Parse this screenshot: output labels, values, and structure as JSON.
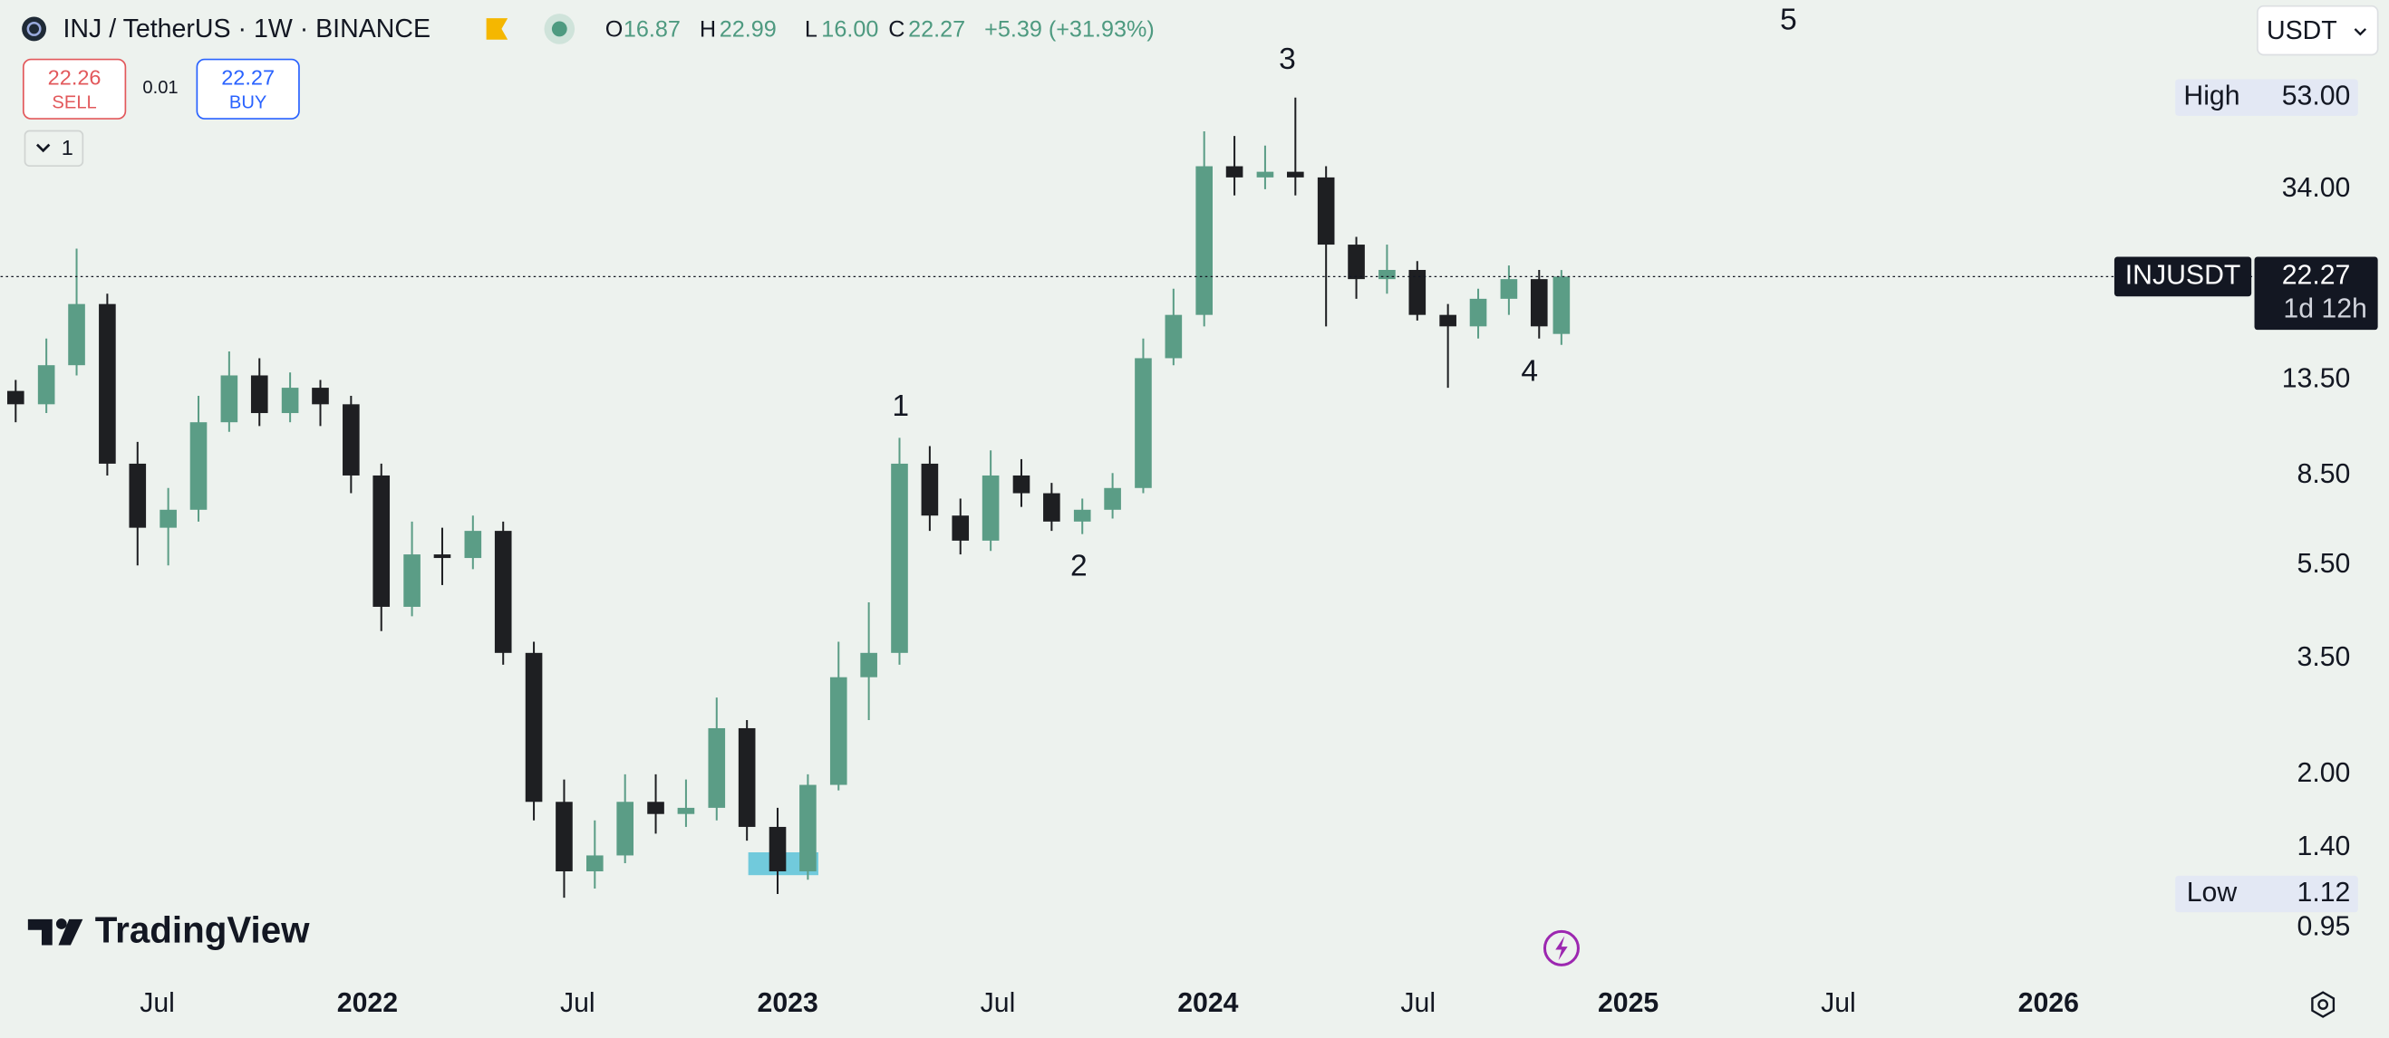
{
  "toolbar": {
    "sell_price": "22.26",
    "sell": "SELL",
    "spread": "0.01",
    "buy_price": "22.27",
    "buy": "BUY",
    "collapse": "1",
    "currency": "USDT"
  },
  "chart_data": {
    "type": "candlestick",
    "symbol": "INJ / TetherUS · 1W · BINANCE",
    "ohlc_header": [
      {
        "key": "O",
        "value": "16.87"
      },
      {
        "key": "H",
        "value": "22.99"
      },
      {
        "key": "L",
        "value": "16.00"
      },
      {
        "key": "C",
        "value": "22.27"
      }
    ],
    "change": "+5.39 (+31.93%)",
    "x": [
      2021.163,
      2021.236,
      2021.308,
      2021.381,
      2021.453,
      2021.526,
      2021.598,
      2021.671,
      2021.743,
      2021.816,
      2021.888,
      2021.961,
      2022.033,
      2022.106,
      2022.178,
      2022.251,
      2022.323,
      2022.396,
      2022.468,
      2022.541,
      2022.613,
      2022.686,
      2022.758,
      2022.831,
      2022.903,
      2022.976,
      2023.048,
      2023.121,
      2023.193,
      2023.266,
      2023.338,
      2023.411,
      2023.483,
      2023.556,
      2023.628,
      2023.701,
      2023.773,
      2023.846,
      2023.918,
      2023.991,
      2024.063,
      2024.136,
      2024.208,
      2024.281,
      2024.353,
      2024.426,
      2024.498,
      2024.571,
      2024.643,
      2024.716,
      2024.788,
      2024.841
    ],
    "open": [
      12.8,
      12.0,
      14.5,
      19.5,
      9.0,
      6.6,
      7.2,
      11.0,
      13.8,
      11.5,
      13.0,
      12.0,
      8.5,
      4.5,
      5.8,
      5.7,
      6.5,
      3.6,
      1.75,
      1.25,
      1.35,
      1.75,
      1.65,
      1.7,
      2.5,
      1.55,
      1.25,
      1.9,
      3.2,
      3.6,
      9.0,
      7.0,
      6.2,
      8.5,
      7.8,
      6.8,
      7.2,
      8.0,
      15.0,
      18.5,
      38,
      36,
      37,
      36,
      26,
      22,
      23,
      18.5,
      17.5,
      20,
      22,
      16.87
    ],
    "high": [
      13.5,
      16.5,
      25.5,
      20.5,
      10.0,
      8.0,
      12.5,
      15.5,
      15.0,
      14.0,
      13.5,
      12.5,
      9.0,
      6.8,
      6.6,
      7.0,
      6.8,
      3.8,
      1.95,
      1.6,
      2.0,
      2.0,
      1.95,
      2.9,
      2.6,
      1.7,
      2.0,
      3.8,
      4.6,
      10.2,
      9.8,
      7.6,
      9.6,
      9.2,
      8.2,
      7.6,
      8.6,
      16.5,
      21,
      45,
      44,
      42,
      53,
      38,
      27,
      26,
      24,
      19.5,
      21,
      23.5,
      23,
      22.99
    ],
    "low": [
      11.0,
      11.5,
      13.8,
      8.5,
      5.5,
      5.5,
      6.8,
      10.5,
      10.8,
      11.0,
      10.8,
      7.8,
      4.0,
      4.3,
      5.0,
      5.4,
      3.4,
      1.6,
      1.1,
      1.15,
      1.3,
      1.5,
      1.55,
      1.6,
      1.45,
      1.12,
      1.2,
      1.85,
      2.6,
      3.4,
      6.5,
      5.8,
      5.9,
      7.3,
      6.5,
      6.4,
      6.9,
      7.8,
      14.5,
      17.5,
      33,
      34,
      33,
      17.5,
      20,
      20.5,
      18,
      13.0,
      16.5,
      18.5,
      16.5,
      16.0
    ],
    "close": [
      12.0,
      14.5,
      19.5,
      9.0,
      6.6,
      7.2,
      11.0,
      13.8,
      11.5,
      13.0,
      12.0,
      8.5,
      4.5,
      5.8,
      5.7,
      6.5,
      3.6,
      1.75,
      1.25,
      1.35,
      1.75,
      1.65,
      1.7,
      2.5,
      1.55,
      1.25,
      1.9,
      3.2,
      3.6,
      9.0,
      7.0,
      6.2,
      8.5,
      7.8,
      6.8,
      7.2,
      8.0,
      15.0,
      18.5,
      38,
      36,
      37,
      36,
      26,
      22,
      23,
      18.5,
      17.5,
      20,
      22,
      17.5,
      22.27
    ],
    "up_color": "#5b9d86",
    "down_color": "#1e1f22",
    "log_y": true,
    "ylim": [
      0.76,
      85
    ],
    "yticks": [
      {
        "value": 34,
        "label": "34.00"
      },
      {
        "value": 13.5,
        "label": "13.50"
      },
      {
        "value": 8.5,
        "label": "8.50"
      },
      {
        "value": 5.5,
        "label": "5.50"
      },
      {
        "value": 3.5,
        "label": "3.50"
      },
      {
        "value": 2,
        "label": "2.00"
      },
      {
        "value": 1.4,
        "label": "1.40"
      },
      0.95
    ],
    "xlim": [
      2021.127,
      2026.49
    ],
    "xticks": [
      {
        "value": 2021.5,
        "label": "Jul"
      },
      2022,
      {
        "value": 2022.5,
        "label": "Jul"
      },
      2023,
      {
        "value": 2023.5,
        "label": "Jul"
      },
      2024,
      {
        "value": 2024.5,
        "label": "Jul"
      },
      2025,
      {
        "value": 2025.5,
        "label": "Jul"
      },
      2026
    ],
    "high_marker": {
      "name": "High",
      "value": 53,
      "label": "53.00"
    },
    "low_marker": {
      "name": "Low",
      "value": 1.12
    },
    "last_price": {
      "name": "INJUSDT",
      "value": 22.27,
      "countdown": "1d 12h"
    },
    "annotations": [
      "1",
      "2",
      "3",
      "4",
      "5"
    ],
    "watermark": "TradingView"
  }
}
